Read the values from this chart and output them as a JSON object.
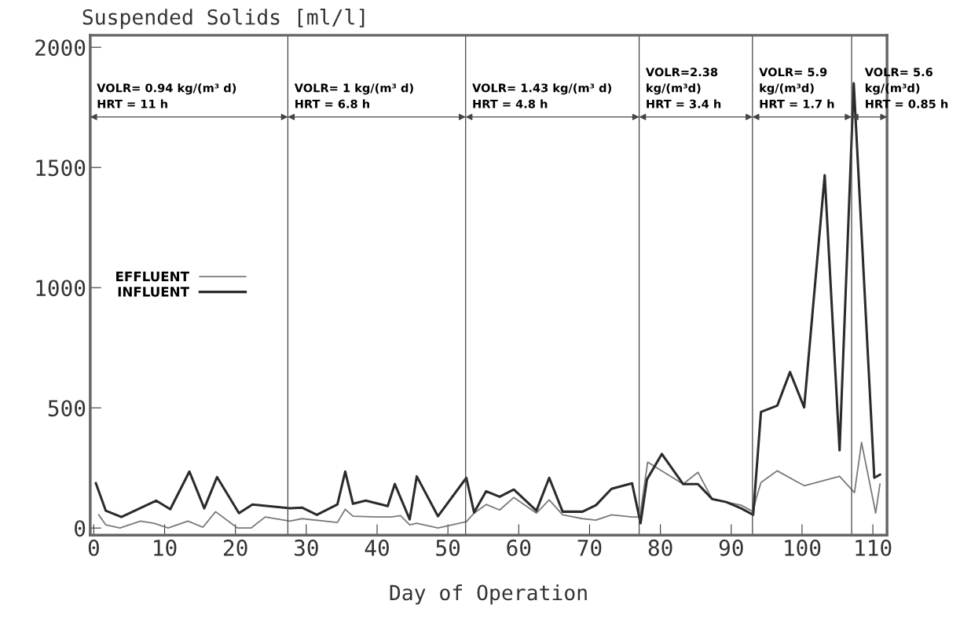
{
  "chart_data": {
    "type": "line",
    "ylabel": "Suspended Solids [ml/l]",
    "xlabel": "Day of Operation",
    "xlim": [
      -0.5,
      112
    ],
    "ylim": [
      -30,
      2050
    ],
    "xticks": [
      0,
      10,
      20,
      30,
      40,
      50,
      60,
      70,
      80,
      90,
      100,
      110
    ],
    "yticks": [
      0,
      500,
      1000,
      1500,
      2000
    ],
    "grid": false,
    "legend": "center left",
    "marker": "none",
    "line_style": "solid",
    "series": [
      {
        "name": "EFFLUENT",
        "color": "#7a7a7a",
        "x": [
          0.7,
          1.7,
          3.7,
          6.6,
          8.5,
          10.5,
          13.3,
          15.4,
          17.2,
          20.3,
          22.2,
          24.2,
          27.7,
          29.4,
          34.4,
          35.5,
          36.6,
          40.2,
          42.0,
          43.3,
          44.6,
          45.6,
          48.6,
          52.6,
          53.7,
          55.4,
          57.3,
          59.3,
          62.5,
          64.3,
          66.2,
          69.0,
          70.9,
          73.1,
          76.0,
          77.1,
          78.2,
          83.2,
          85.3,
          87.3,
          91.4,
          93.1,
          93.5,
          94.2,
          96.5,
          100.3,
          105.3,
          107.4,
          108.4,
          110.4,
          111.0
        ],
        "values": [
          55,
          13,
          0,
          29,
          20,
          0,
          29,
          3,
          68,
          0,
          0,
          46,
          29,
          39,
          23,
          78,
          49,
          46,
          46,
          52,
          13,
          20,
          0,
          26,
          62,
          98,
          75,
          127,
          62,
          117,
          55,
          39,
          33,
          55,
          46,
          46,
          274,
          183,
          232,
          121,
          95,
          68,
          121,
          189,
          238,
          176,
          215,
          147,
          356,
          62,
          183
        ]
      },
      {
        "name": "INFLUENT",
        "color": "#2b2b2b",
        "x": [
          0.3,
          1.7,
          3.9,
          8.8,
          10.8,
          13.5,
          15.6,
          17.4,
          20.5,
          22.4,
          27.7,
          29.4,
          31.5,
          34.4,
          35.5,
          36.6,
          38.4,
          41.5,
          42.5,
          44.6,
          45.6,
          48.6,
          52.6,
          53.7,
          55.4,
          57.3,
          59.3,
          62.5,
          64.3,
          66.2,
          69.0,
          70.9,
          73.1,
          76.0,
          77.2,
          78.1,
          80.2,
          83.2,
          85.3,
          87.3,
          89.3,
          91.4,
          93.1,
          94.2,
          96.5,
          98.3,
          100.3,
          103.2,
          105.3,
          107.3,
          110.2,
          111.0
        ],
        "values": [
          186,
          72,
          46,
          114,
          78,
          235,
          82,
          212,
          62,
          98,
          82,
          85,
          55,
          98,
          235,
          101,
          114,
          91,
          183,
          36,
          215,
          49,
          209,
          65,
          153,
          130,
          160,
          72,
          209,
          68,
          68,
          95,
          163,
          186,
          20,
          202,
          308,
          183,
          183,
          121,
          108,
          82,
          55,
          483,
          509,
          649,
          502,
          1468,
          323,
          1850,
          209,
          222
        ]
      }
    ],
    "ref_lines": [
      {
        "axis": "x",
        "value": 27.4
      },
      {
        "axis": "x",
        "value": 52.5
      },
      {
        "axis": "x",
        "value": 77.0
      },
      {
        "axis": "x",
        "value": 93.0
      },
      {
        "axis": "x",
        "value": 107.0
      }
    ],
    "annotations": [
      {
        "text": "VOLR= 0.94 kg/(m³ d)\nHRT = 11 h",
        "x": 27.4,
        "y": 1710
      },
      {
        "text": "VOLR= 1 kg/(m³ d)\nHRT = 6.8 h",
        "x": 27.4,
        "y": 1710
      },
      {
        "text": "VOLR= 1.43 kg/(m³ d)\nHRT = 4.8 h",
        "x": 52.5,
        "y": 1710
      },
      {
        "text": "VOLR=2.38\nkg/(m³d)\nHRT = 3.4 h",
        "x": 77.0,
        "y": 1710
      },
      {
        "text": "VOLR= 5.9\nkg/(m³d)\nHRT = 1.7 h",
        "x": 93.0,
        "y": 1710
      },
      {
        "text": "VOLR= 5.6\nkg/(m³d)\nHRT = 0.85 h",
        "x": 107.0,
        "y": 1710
      }
    ]
  }
}
